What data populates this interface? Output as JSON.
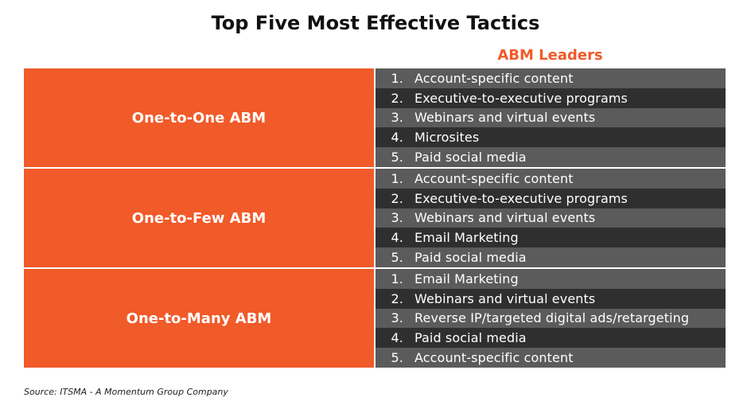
{
  "title": "Top Five Most Effective Tactics",
  "column_header": "ABM Leaders",
  "colors": {
    "accent": "#f15a29",
    "row_light": "#5b5b5b",
    "row_dark": "#2f2f2f"
  },
  "groups": [
    {
      "segment": "One-to-One ABM",
      "items": [
        {
          "num": "1.",
          "text": "Account-specific content"
        },
        {
          "num": "2.",
          "text": "Executive-to-executive programs"
        },
        {
          "num": "3.",
          "text": "Webinars and virtual events"
        },
        {
          "num": "4.",
          "text": "Microsites"
        },
        {
          "num": "5.",
          "text": "Paid social media"
        }
      ]
    },
    {
      "segment": "One-to-Few ABM",
      "items": [
        {
          "num": "1.",
          "text": "Account-specific content"
        },
        {
          "num": "2.",
          "text": "Executive-to-executive programs"
        },
        {
          "num": "3.",
          "text": "Webinars and virtual events"
        },
        {
          "num": "4.",
          "text": "Email Marketing"
        },
        {
          "num": "5.",
          "text": "Paid social media"
        }
      ]
    },
    {
      "segment": "One-to-Many ABM",
      "items": [
        {
          "num": "1.",
          "text": "Email Marketing"
        },
        {
          "num": "2.",
          "text": "Webinars and virtual events"
        },
        {
          "num": "3.",
          "text": "Reverse IP/targeted digital ads/retargeting"
        },
        {
          "num": "4.",
          "text": "Paid social media"
        },
        {
          "num": "5.",
          "text": "Account-specific content"
        }
      ]
    }
  ],
  "source": "Source: ITSMA - A Momentum Group Company"
}
